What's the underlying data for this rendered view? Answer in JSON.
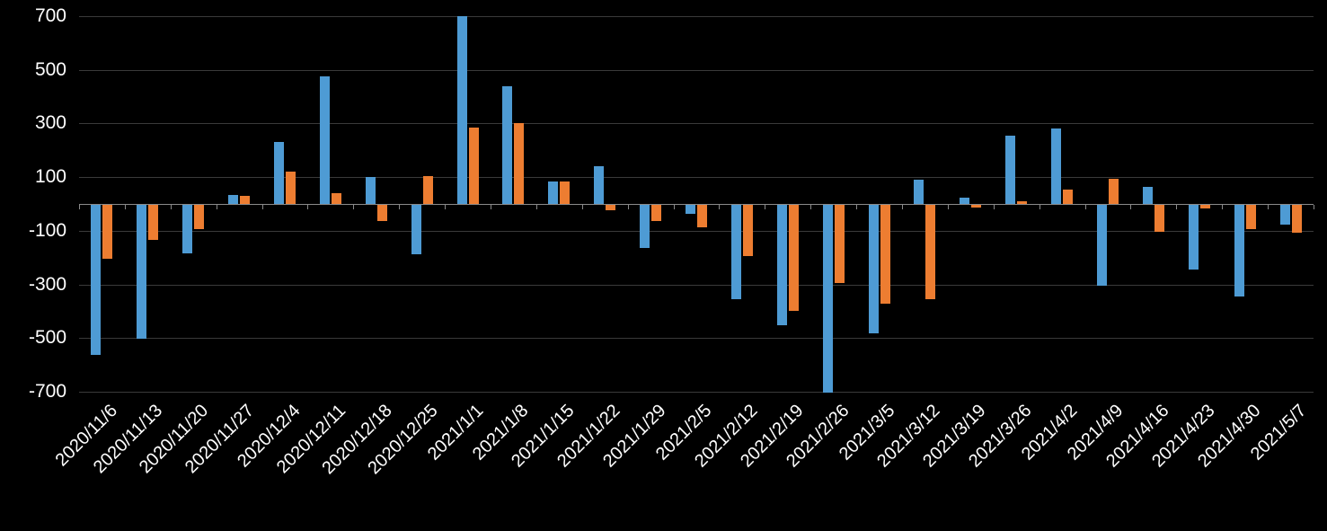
{
  "chart_data": {
    "type": "bar",
    "title": "",
    "xlabel": "",
    "ylabel": "",
    "background_color": "#000000",
    "text_color": "#ffffff",
    "gridline_color": "#3a3a3a",
    "axis_color": "#8a8a8a",
    "grid": true,
    "legend_position": "none",
    "ylim": [
      -700,
      700
    ],
    "yticks": [
      700,
      500,
      300,
      100,
      -100,
      -300,
      -500,
      -700
    ],
    "categories": [
      "2020/11/6",
      "2020/11/13",
      "2020/11/20",
      "2020/11/27",
      "2020/12/4",
      "2020/12/11",
      "2020/12/18",
      "2020/12/25",
      "2021/1/1",
      "2021/1/8",
      "2021/1/15",
      "2021/1/22",
      "2021/1/29",
      "2021/2/5",
      "2021/2/12",
      "2021/2/19",
      "2021/2/26",
      "2021/3/5",
      "2021/3/12",
      "2021/3/19",
      "2021/3/26",
      "2021/4/2",
      "2021/4/9",
      "2021/4/16",
      "2021/4/23",
      "2021/4/30",
      "2021/5/7"
    ],
    "series": [
      {
        "name": "series-blue",
        "color": "#4e9bd4",
        "values": [
          -560,
          -500,
          -180,
          35,
          230,
          475,
          100,
          -185,
          700,
          440,
          85,
          140,
          -160,
          -35,
          -350,
          -450,
          -700,
          -480,
          90,
          25,
          255,
          280,
          -300,
          65,
          -240,
          -340,
          -75
        ]
      },
      {
        "name": "series-orange",
        "color": "#ed7d31",
        "values": [
          -200,
          -130,
          -90,
          30,
          120,
          40,
          -60,
          105,
          285,
          300,
          85,
          -20,
          -60,
          -85,
          -190,
          -395,
          -290,
          -370,
          -350,
          -10,
          10,
          55,
          95,
          -100,
          -15,
          -90,
          -105
        ]
      }
    ]
  }
}
